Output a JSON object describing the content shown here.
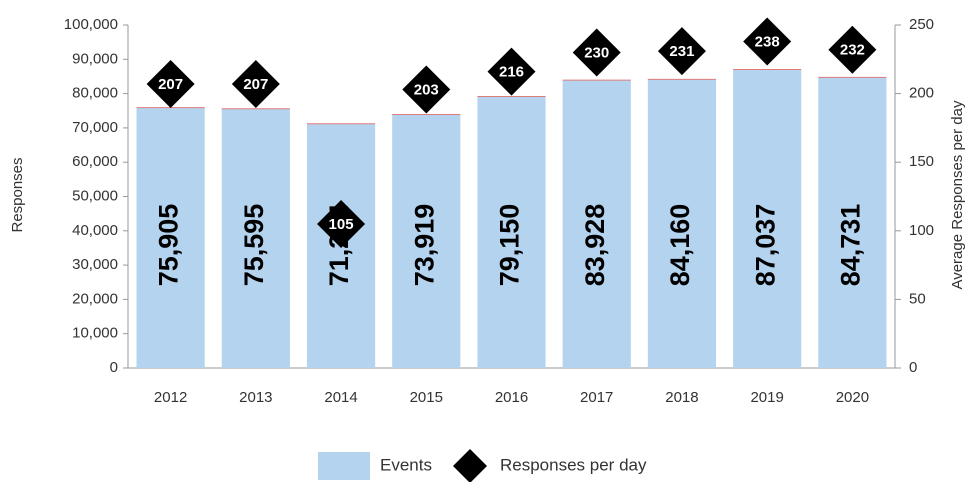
{
  "chart_data": {
    "type": "bar",
    "categories": [
      "2012",
      "2013",
      "2014",
      "2015",
      "2016",
      "2017",
      "2018",
      "2019",
      "2020"
    ],
    "series": [
      {
        "name": "Events",
        "color": "#b4d3ef",
        "values": [
          75905,
          75595,
          71214,
          73919,
          79150,
          83928,
          84160,
          87037,
          84731
        ],
        "value_labels": [
          "75,905",
          "75,595",
          "71,214",
          "73,919",
          "79,150",
          "83,928",
          "84,160",
          "87,037",
          "84,731"
        ]
      },
      {
        "name": "Responses per day",
        "color": "#000000",
        "axis": "y2",
        "marker": "diamond",
        "values": [
          207,
          207,
          105,
          203,
          216,
          230,
          231,
          238,
          232
        ]
      }
    ],
    "ylabel": "Responses",
    "y2label": "Average Responses per day",
    "ylim": [
      0,
      100000
    ],
    "yticks": [
      {
        "value": 0,
        "label": "0"
      },
      {
        "value": 10000,
        "label": "10,000"
      },
      {
        "value": 20000,
        "label": "20,000"
      },
      {
        "value": 30000,
        "label": "30,000"
      },
      {
        "value": 40000,
        "label": "40,000"
      },
      {
        "value": 50000,
        "label": "50,000"
      },
      {
        "value": 60000,
        "label": "60,000"
      },
      {
        "value": 70000,
        "label": "70,000"
      },
      {
        "value": 80000,
        "label": "80,000"
      },
      {
        "value": 90000,
        "label": "90,000"
      },
      {
        "value": 100000,
        "label": "100,000"
      }
    ],
    "y2lim": [
      0,
      250
    ],
    "y2ticks": [
      0,
      50,
      100,
      150,
      200,
      250
    ],
    "legend": "bottom"
  }
}
